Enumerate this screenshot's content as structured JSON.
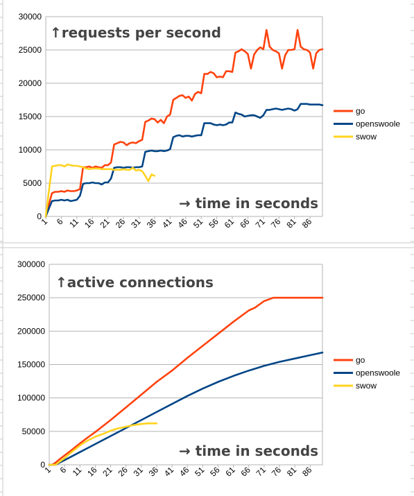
{
  "colors": {
    "go": "#ff420e",
    "openswoole": "#004586",
    "swow": "#ffd320",
    "grid": "#b3b3b3",
    "annotation": "#444444",
    "sheet_lines": "#c8c8c8"
  },
  "chart_data": [
    {
      "type": "line",
      "annotation": "↑requests per second",
      "xaxis_annotation": "→ time in seconds",
      "x_tick_labels": [
        "1",
        "6",
        "11",
        "16",
        "21",
        "26",
        "31",
        "36",
        "41",
        "46",
        "51",
        "56",
        "61",
        "66",
        "71",
        "76",
        "81",
        "86"
      ],
      "xlim": [
        1,
        90
      ],
      "ylim": [
        0,
        30000
      ],
      "y_ticks": [
        0,
        5000,
        10000,
        15000,
        20000,
        25000,
        30000
      ],
      "grid": true,
      "legend_position": "right",
      "series": [
        {
          "name": "go",
          "color": "#ff420e",
          "x": [
            1,
            2,
            3,
            4,
            5,
            6,
            7,
            8,
            9,
            10,
            11,
            12,
            13,
            14,
            15,
            16,
            17,
            18,
            19,
            20,
            21,
            22,
            23,
            24,
            25,
            26,
            27,
            28,
            29,
            30,
            31,
            32,
            33,
            34,
            35,
            36,
            37,
            38,
            39,
            40,
            41,
            42,
            43,
            44,
            45,
            46,
            47,
            48,
            49,
            50,
            51,
            52,
            53,
            54,
            55,
            56,
            57,
            58,
            59,
            60,
            61,
            62,
            63,
            64,
            65,
            66,
            67,
            68,
            69,
            70,
            71,
            72,
            73,
            74,
            75,
            76,
            77,
            78,
            79,
            80,
            81,
            82,
            83,
            84,
            85,
            86,
            87,
            88,
            89,
            90
          ],
          "y": [
            0,
            1800,
            3500,
            3700,
            3700,
            3800,
            3700,
            3900,
            3800,
            3800,
            3900,
            4100,
            7400,
            7400,
            7500,
            7300,
            7500,
            7400,
            7300,
            7700,
            7700,
            8100,
            10800,
            11000,
            11200,
            11100,
            10700,
            11000,
            11100,
            11000,
            11300,
            11500,
            14200,
            14400,
            14700,
            14600,
            14100,
            14500,
            14000,
            15000,
            15300,
            17500,
            17800,
            18100,
            18200,
            17800,
            18000,
            17400,
            18400,
            18700,
            18500,
            21400,
            21400,
            21700,
            21500,
            20900,
            21000,
            20900,
            21800,
            21800,
            21700,
            24600,
            24800,
            25100,
            24800,
            24400,
            22200,
            24300,
            25000,
            25400,
            25100,
            28000,
            25500,
            25000,
            24800,
            24500,
            22200,
            24200,
            25000,
            25000,
            25100,
            28000,
            25500,
            25100,
            25000,
            24600,
            22200,
            24500,
            25000,
            25100
          ]
        },
        {
          "name": "openswoole",
          "color": "#004586",
          "x": [
            1,
            2,
            3,
            4,
            5,
            6,
            7,
            8,
            9,
            10,
            11,
            12,
            13,
            14,
            15,
            16,
            17,
            18,
            19,
            20,
            21,
            22,
            23,
            24,
            25,
            26,
            27,
            28,
            29,
            30,
            31,
            32,
            33,
            34,
            35,
            36,
            37,
            38,
            39,
            40,
            41,
            42,
            43,
            44,
            45,
            46,
            47,
            48,
            49,
            50,
            51,
            52,
            53,
            54,
            55,
            56,
            57,
            58,
            59,
            60,
            61,
            62,
            63,
            64,
            65,
            66,
            67,
            68,
            69,
            70,
            71,
            72,
            73,
            74,
            75,
            76,
            77,
            78,
            79,
            80,
            81,
            82,
            83,
            84,
            85,
            86,
            87,
            88,
            89,
            90
          ],
          "y": [
            0,
            1200,
            2300,
            2400,
            2400,
            2500,
            2400,
            2500,
            2300,
            2400,
            2500,
            3100,
            4900,
            5000,
            5000,
            5100,
            5000,
            5000,
            4800,
            5100,
            5100,
            5700,
            7300,
            7400,
            7400,
            7300,
            7400,
            7400,
            7300,
            7400,
            7400,
            7500,
            9700,
            9800,
            9900,
            9800,
            9800,
            9900,
            9800,
            9900,
            10100,
            11900,
            12100,
            12200,
            12000,
            12100,
            12100,
            12000,
            12100,
            12200,
            12200,
            14000,
            14000,
            14000,
            13800,
            13700,
            13800,
            13700,
            13800,
            14100,
            14100,
            15600,
            15400,
            15300,
            15000,
            15100,
            15200,
            15200,
            15000,
            14800,
            15200,
            16000,
            16000,
            16100,
            16200,
            16100,
            16000,
            16100,
            16200,
            16100,
            15900,
            16100,
            16900,
            16900,
            16900,
            16800,
            16800,
            16800,
            16800,
            16700
          ]
        },
        {
          "name": "swow",
          "color": "#ffd320",
          "x": [
            1,
            2,
            3,
            4,
            5,
            6,
            7,
            8,
            9,
            10,
            11,
            12,
            13,
            14,
            15,
            16,
            17,
            18,
            19,
            20,
            21,
            22,
            23,
            24,
            25,
            26,
            27,
            28,
            29,
            30,
            31,
            32,
            33,
            34,
            35,
            36
          ],
          "y": [
            0,
            3800,
            7500,
            7600,
            7700,
            7700,
            7500,
            7800,
            7700,
            7600,
            7600,
            7500,
            7400,
            7200,
            7100,
            7200,
            7200,
            7200,
            7100,
            7100,
            7100,
            7100,
            7000,
            7000,
            7000,
            7100,
            7000,
            7000,
            7300,
            6900,
            7000,
            6800,
            6100,
            5300,
            6300,
            6100
          ]
        }
      ]
    },
    {
      "type": "line",
      "annotation": "↑active connections",
      "xaxis_annotation": "→ time in seconds",
      "x_tick_labels": [
        "1",
        "6",
        "11",
        "16",
        "21",
        "26",
        "31",
        "36",
        "41",
        "46",
        "51",
        "56",
        "61",
        "66",
        "71",
        "76",
        "81",
        "86"
      ],
      "xlim": [
        1,
        90
      ],
      "ylim": [
        0,
        300000
      ],
      "y_ticks": [
        0,
        50000,
        100000,
        150000,
        200000,
        250000,
        300000
      ],
      "grid": true,
      "legend_position": "right",
      "series": [
        {
          "name": "go",
          "color": "#ff420e",
          "x": [
            1,
            2,
            3,
            4,
            6,
            8,
            11,
            13,
            16,
            21,
            26,
            31,
            36,
            41,
            46,
            51,
            56,
            61,
            66,
            68,
            71,
            74,
            75,
            80,
            85,
            90
          ],
          "y": [
            0,
            0,
            3000,
            7000,
            14000,
            21000,
            32000,
            39000,
            49000,
            67000,
            86000,
            105000,
            124000,
            141000,
            160000,
            178000,
            196000,
            214000,
            231000,
            235000,
            245000,
            250000,
            250000,
            250000,
            250000,
            250000
          ]
        },
        {
          "name": "openswoole",
          "color": "#004586",
          "x": [
            1,
            3,
            6,
            11,
            16,
            21,
            26,
            31,
            36,
            41,
            46,
            51,
            56,
            61,
            66,
            71,
            76,
            81,
            86,
            90
          ],
          "y": [
            0,
            0,
            7000,
            19000,
            31000,
            43000,
            55000,
            67000,
            79000,
            91000,
            103000,
            114000,
            124000,
            133000,
            141000,
            148000,
            154000,
            159000,
            164000,
            168000
          ]
        },
        {
          "name": "swow",
          "color": "#ffd320",
          "x": [
            1,
            3,
            6,
            8,
            11,
            13,
            16,
            19,
            21,
            23,
            26,
            28,
            31,
            33,
            36
          ],
          "y": [
            0,
            0,
            10000,
            18000,
            29000,
            35000,
            42000,
            47000,
            51000,
            54000,
            57000,
            59000,
            61000,
            62000,
            62000
          ]
        }
      ]
    }
  ]
}
